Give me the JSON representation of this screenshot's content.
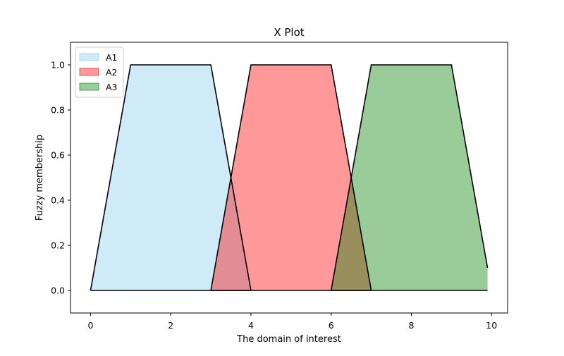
{
  "chart_data": {
    "type": "area",
    "title": "X Plot",
    "xlabel": "The domain of interest",
    "ylabel": "Fuzzy membership",
    "xlim": [
      -0.5,
      10.4
    ],
    "ylim": [
      -0.1,
      1.1
    ],
    "xticks": [
      0,
      2,
      4,
      6,
      8,
      10
    ],
    "yticks": [
      0.0,
      0.2,
      0.4,
      0.6,
      0.8,
      1.0
    ],
    "xtick_labels": [
      "0",
      "2",
      "4",
      "6",
      "8",
      "10"
    ],
    "ytick_labels": [
      "0.0",
      "0.2",
      "0.4",
      "0.6",
      "0.8",
      "1.0"
    ],
    "grid": false,
    "legend_position": "top-left",
    "series": [
      {
        "name": "A1",
        "color": "#87ceeb",
        "alpha": 0.4,
        "x": [
          0,
          1,
          3,
          4
        ],
        "y": [
          0,
          1,
          1,
          0
        ]
      },
      {
        "name": "A2",
        "color": "#ff0000",
        "alpha": 0.4,
        "x": [
          3,
          4,
          6,
          7
        ],
        "y": [
          0,
          1,
          1,
          0
        ]
      },
      {
        "name": "A3",
        "color": "#008000",
        "alpha": 0.4,
        "x": [
          6,
          7,
          9,
          9.9,
          9.9
        ],
        "y": [
          0,
          1,
          1,
          0.1,
          0.1
        ]
      }
    ]
  }
}
